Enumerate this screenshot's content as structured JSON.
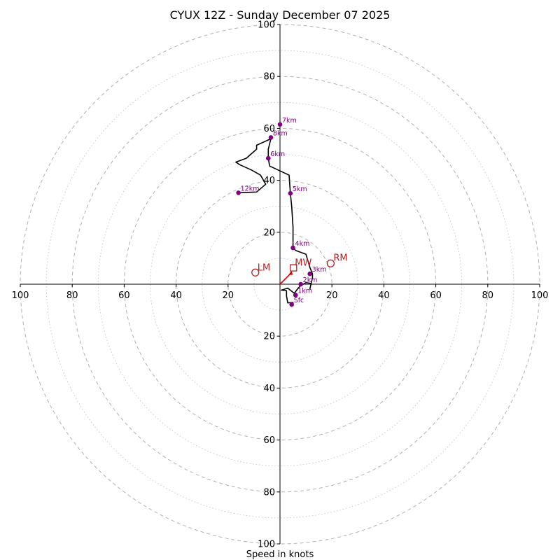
{
  "chart_data": {
    "type": "hodograph",
    "title": "CYUX 12Z - Sunday December 07 2025",
    "xlabel": "Speed in knots",
    "range": 100,
    "major_rings": [
      20,
      40,
      60,
      80,
      100
    ],
    "minor_rings": [
      10,
      30,
      50,
      70,
      90
    ],
    "x_tick_labels": [
      {
        "value": -100,
        "label": "100"
      },
      {
        "value": -80,
        "label": "80"
      },
      {
        "value": -60,
        "label": "60"
      },
      {
        "value": -40,
        "label": "40"
      },
      {
        "value": -20,
        "label": "20"
      },
      {
        "value": 20,
        "label": "20"
      },
      {
        "value": 40,
        "label": "40"
      },
      {
        "value": 60,
        "label": "60"
      },
      {
        "value": 80,
        "label": "80"
      },
      {
        "value": 100,
        "label": "100"
      }
    ],
    "y_tick_labels": [
      {
        "value": 100,
        "label": "100"
      },
      {
        "value": 80,
        "label": "80"
      },
      {
        "value": 60,
        "label": "60"
      },
      {
        "value": 40,
        "label": "40"
      },
      {
        "value": 20,
        "label": "20"
      },
      {
        "value": -20,
        "label": "20"
      },
      {
        "value": -40,
        "label": "40"
      },
      {
        "value": -60,
        "label": "60"
      },
      {
        "value": -80,
        "label": "80"
      },
      {
        "value": -100,
        "label": "100"
      }
    ],
    "trace": [
      [
        4.5,
        -7.8
      ],
      [
        5,
        -7
      ],
      [
        3,
        -7.2
      ],
      [
        2.5,
        -4.5
      ],
      [
        2.5,
        -2.5
      ],
      [
        0.5,
        -2.3
      ],
      [
        3,
        -1.5
      ],
      [
        5.5,
        -3.5
      ],
      [
        7,
        -1.5
      ],
      [
        8,
        -0.5
      ],
      [
        10,
        0.6
      ],
      [
        12,
        0.3
      ],
      [
        11.5,
        -1.8
      ],
      [
        12.5,
        2.5
      ],
      [
        12.5,
        4
      ],
      [
        11.5,
        6.5
      ],
      [
        10,
        11.5
      ],
      [
        6,
        13
      ],
      [
        5,
        14.2
      ],
      [
        5,
        22
      ],
      [
        4.5,
        30
      ],
      [
        4,
        35
      ],
      [
        3.5,
        42
      ],
      [
        -4,
        45.5
      ],
      [
        -4.5,
        48.5
      ],
      [
        -4.5,
        52
      ],
      [
        -3.5,
        56
      ],
      [
        -9,
        53.5
      ],
      [
        -9,
        52
      ],
      [
        -13,
        48.5
      ],
      [
        -17,
        47
      ],
      [
        -15.5,
        46
      ],
      [
        -11,
        44
      ],
      [
        -7.5,
        42
      ],
      [
        -5.5,
        38.5
      ],
      [
        -9,
        35.5
      ],
      [
        -16,
        35.2
      ]
    ],
    "height_markers": [
      {
        "label": "Sfc",
        "u": 4.5,
        "v": -7.8
      },
      {
        "label": "1km",
        "u": 6,
        "v": -4.2
      },
      {
        "label": "2km",
        "u": 8,
        "v": 0
      },
      {
        "label": "3km",
        "u": 11.5,
        "v": 4
      },
      {
        "label": "4km",
        "u": 5,
        "v": 14
      },
      {
        "label": "5km",
        "u": 4,
        "v": 35
      },
      {
        "label": "6km",
        "u": -4.5,
        "v": 48.5
      },
      {
        "label": "8km",
        "u": -3.5,
        "v": 56.5
      },
      {
        "label": "7km",
        "u": 0,
        "v": 61.5
      },
      {
        "label": "12km",
        "u": -16,
        "v": 35.2
      }
    ],
    "storm_motion": {
      "rm": {
        "label": "RM",
        "u": 19.5,
        "v": 8
      },
      "lm": {
        "label": "LM",
        "u": -9.5,
        "v": 4.5
      },
      "mw": {
        "label": "MW",
        "u": 5.2,
        "v": 6.3
      }
    }
  },
  "colors": {
    "trace": "#000000",
    "height_marker": "#800080",
    "storm_motion": "#b22222",
    "mean_wind_arrow": "#e00000"
  }
}
